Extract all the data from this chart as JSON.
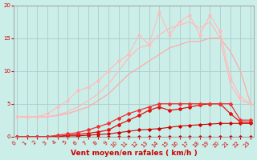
{
  "background_color": "#cceee8",
  "grid_color": "#aacccc",
  "x_values": [
    0,
    1,
    2,
    3,
    4,
    5,
    6,
    7,
    8,
    9,
    10,
    11,
    12,
    13,
    14,
    15,
    16,
    17,
    18,
    19,
    20,
    21,
    22,
    23
  ],
  "series": [
    {
      "color": "#cc0000",
      "linewidth": 0.8,
      "marker": "D",
      "markersize": 1.8,
      "y": [
        0,
        0,
        0,
        0,
        0,
        0,
        0,
        0,
        0,
        0,
        0,
        0,
        0,
        0,
        0,
        0,
        0,
        0,
        0,
        0,
        0,
        0,
        0,
        0
      ]
    },
    {
      "color": "#cc0000",
      "linewidth": 0.8,
      "marker": "D",
      "markersize": 1.8,
      "y": [
        0,
        0,
        0,
        0,
        0,
        0.1,
        0.1,
        0.2,
        0.3,
        0.4,
        0.6,
        0.8,
        1.0,
        1.1,
        1.2,
        1.4,
        1.6,
        1.7,
        1.8,
        1.9,
        2.0,
        2.0,
        2.0,
        2.0
      ]
    },
    {
      "color": "#dd1111",
      "linewidth": 0.9,
      "marker": "D",
      "markersize": 2.0,
      "y": [
        0,
        0,
        0,
        0,
        0,
        0.2,
        0.3,
        0.5,
        0.7,
        1.0,
        1.8,
        2.5,
        3.2,
        4.0,
        4.5,
        4.0,
        4.2,
        4.5,
        4.8,
        5.0,
        5.0,
        3.5,
        2.2,
        2.2
      ]
    },
    {
      "color": "#ee3333",
      "linewidth": 0.9,
      "marker": "D",
      "markersize": 2.0,
      "y": [
        0,
        0,
        0,
        0,
        0.2,
        0.4,
        0.6,
        1.0,
        1.5,
        2.0,
        2.8,
        3.5,
        4.0,
        4.5,
        5.0,
        5.0,
        5.0,
        5.0,
        5.0,
        5.0,
        5.0,
        5.0,
        2.5,
        2.5
      ]
    },
    {
      "color": "#ffaaaa",
      "linewidth": 0.9,
      "marker": null,
      "markersize": 0,
      "y": [
        3,
        3,
        3,
        3,
        3.2,
        3.5,
        4.0,
        4.5,
        5.5,
        6.5,
        8.0,
        9.5,
        10.5,
        11.5,
        12.5,
        13.5,
        14.0,
        14.5,
        14.5,
        15.0,
        15.0,
        13.0,
        10.0,
        5.0
      ]
    },
    {
      "color": "#ffbbbb",
      "linewidth": 0.9,
      "marker": null,
      "markersize": 0,
      "y": [
        3,
        3,
        3,
        3,
        3.3,
        3.8,
        4.5,
        5.5,
        6.5,
        8.0,
        10.0,
        12.0,
        13.5,
        14.0,
        15.5,
        16.5,
        17.0,
        17.5,
        16.5,
        17.5,
        15.0,
        8.0,
        5.5,
        5.0
      ]
    },
    {
      "color": "#ffbbbb",
      "linewidth": 0.8,
      "marker": "o",
      "markersize": 2.0,
      "y": [
        3,
        3,
        3,
        3.5,
        4.5,
        5.5,
        7.0,
        7.5,
        8.5,
        10.0,
        11.5,
        12.5,
        15.5,
        14.0,
        19.0,
        15.5,
        17.5,
        18.5,
        15.5,
        18.5,
        16.0,
        9.0,
        6.0,
        5.0
      ]
    }
  ],
  "xlim": [
    -0.3,
    23.3
  ],
  "ylim": [
    0,
    20
  ],
  "yticks": [
    0,
    5,
    10,
    15,
    20
  ],
  "xticks": [
    0,
    1,
    2,
    3,
    4,
    5,
    6,
    7,
    8,
    9,
    10,
    11,
    12,
    13,
    14,
    15,
    16,
    17,
    18,
    19,
    20,
    21,
    22,
    23
  ],
  "xlabel": "Vent moyen/en rafales ( km/h )",
  "xlabel_color": "#cc0000",
  "tick_color": "#cc0000",
  "tick_fontsize": 5.0,
  "xlabel_fontsize": 6.5
}
